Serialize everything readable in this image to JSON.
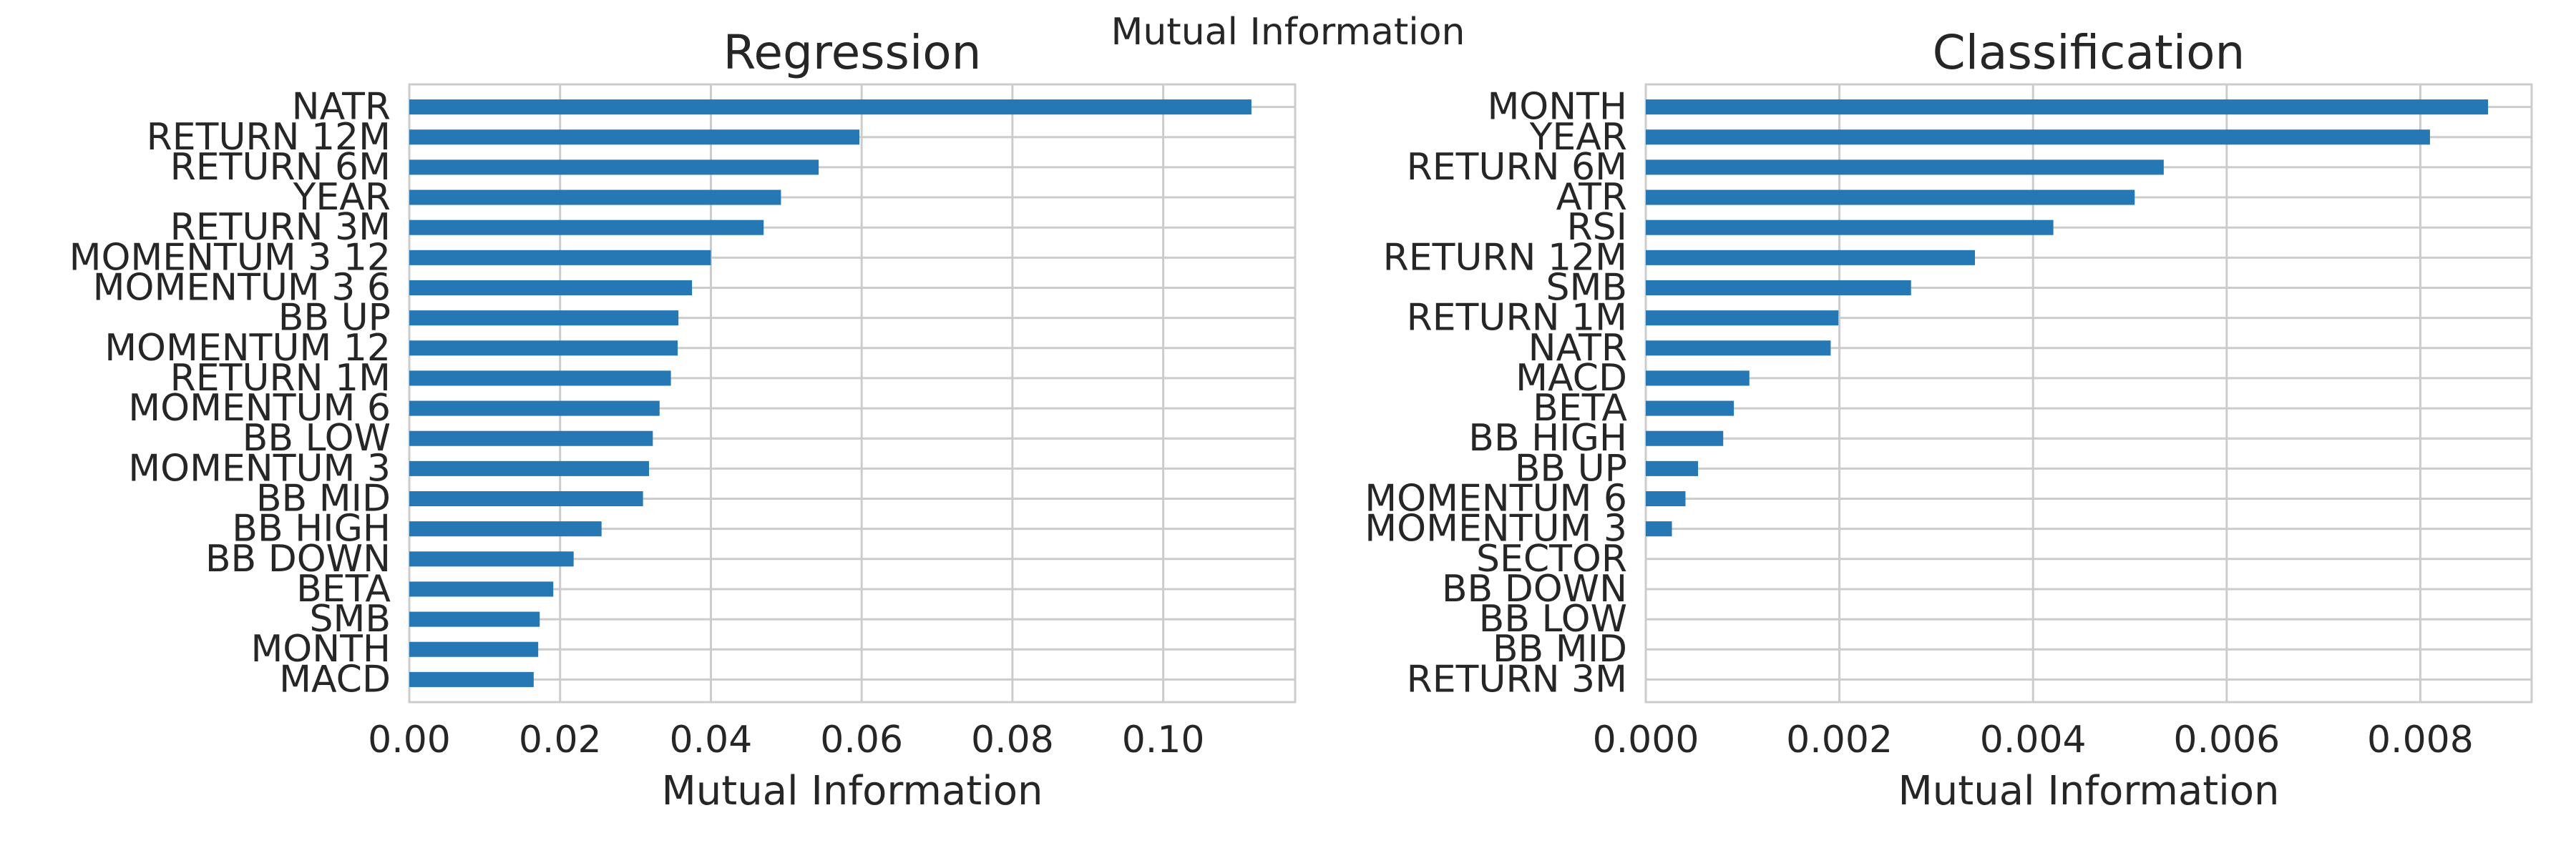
{
  "suptitle": "Mutual Information",
  "colors": {
    "bar": "#2678b5",
    "grid": "#cccccc",
    "text": "#262626",
    "background": "#ffffff"
  },
  "chart_data": [
    {
      "type": "bar",
      "orientation": "horizontal",
      "title": "Regression",
      "xlabel": "Mutual Information",
      "ylabel": "",
      "xlim": [
        0,
        0.1175
      ],
      "xticks": [
        0.0,
        0.02,
        0.04,
        0.06,
        0.08,
        0.1
      ],
      "xtick_labels": [
        "0.00",
        "0.02",
        "0.04",
        "0.06",
        "0.08",
        "0.10"
      ],
      "grid": true,
      "categories": [
        "NATR",
        "RETURN 12M",
        "RETURN 6M",
        "YEAR",
        "RETURN 3M",
        "MOMENTUM 3 12",
        "MOMENTUM 3 6",
        "BB UP",
        "MOMENTUM 12",
        "RETURN 1M",
        "MOMENTUM 6",
        "BB LOW",
        "MOMENTUM 3",
        "BB MID",
        "BB HIGH",
        "BB DOWN",
        "BETA",
        "SMB",
        "MONTH",
        "MACD"
      ],
      "values": [
        0.1117,
        0.0597,
        0.0543,
        0.0493,
        0.047,
        0.04,
        0.0375,
        0.0357,
        0.0356,
        0.0347,
        0.0332,
        0.0323,
        0.0318,
        0.031,
        0.0255,
        0.0218,
        0.0191,
        0.0173,
        0.0171,
        0.0165
      ]
    },
    {
      "type": "bar",
      "orientation": "horizontal",
      "title": "Classification",
      "xlabel": "Mutual Information",
      "ylabel": "",
      "xlim": [
        0,
        0.00915
      ],
      "xticks": [
        0.0,
        0.002,
        0.004,
        0.006,
        0.008
      ],
      "xtick_labels": [
        "0.000",
        "0.002",
        "0.004",
        "0.006",
        "0.008"
      ],
      "grid": true,
      "categories": [
        "MONTH",
        "YEAR",
        "RETURN 6M",
        "ATR",
        "RSI",
        "RETURN 12M",
        "SMB",
        "RETURN 1M",
        "NATR",
        "MACD",
        "BETA",
        "BB HIGH",
        "BB UP",
        "MOMENTUM 6",
        "MOMENTUM 3",
        "SECTOR",
        "BB DOWN",
        "BB LOW",
        "BB MID",
        "RETURN 3M"
      ],
      "values": [
        0.0087,
        0.0081,
        0.00535,
        0.00505,
        0.00421,
        0.0034,
        0.00274,
        0.00199,
        0.00191,
        0.00107,
        0.00091,
        0.0008,
        0.00054,
        0.00041,
        0.00027,
        0,
        0,
        0,
        0,
        0
      ]
    }
  ]
}
